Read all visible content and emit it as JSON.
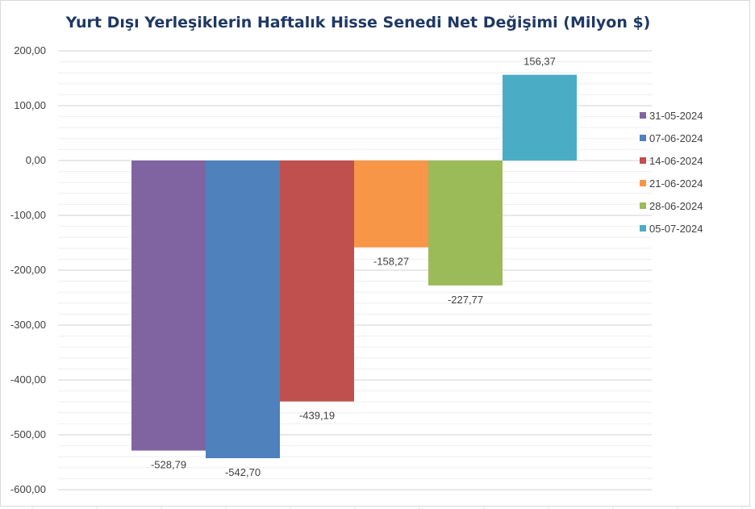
{
  "chart_data": {
    "type": "bar",
    "title": "Yurt Dışı Yerleşiklerin Haftalık Hisse Senedi Net Değişimi (Milyon $)",
    "xlabel": "",
    "ylabel": "",
    "ylim": [
      -600,
      200
    ],
    "y_ticks": [
      "200,00",
      "100,00",
      "0,00",
      "-100,00",
      "-200,00",
      "-300,00",
      "-400,00",
      "-500,00",
      "-600,00"
    ],
    "y_tick_values": [
      200,
      100,
      0,
      -100,
      -200,
      -300,
      -400,
      -500,
      -600
    ],
    "grid": true,
    "legend_position": "right",
    "series": [
      {
        "name": "31-05-2024",
        "value": -528.79,
        "label": "-528,79",
        "color": "#8064a2"
      },
      {
        "name": "07-06-2024",
        "value": -542.7,
        "label": "-542,70",
        "color": "#4f81bd"
      },
      {
        "name": "14-06-2024",
        "value": -439.19,
        "label": "-439,19",
        "color": "#c0504d"
      },
      {
        "name": "21-06-2024",
        "value": -158.27,
        "label": "-158,27",
        "color": "#f79646"
      },
      {
        "name": "28-06-2024",
        "value": -227.77,
        "label": "-227,77",
        "color": "#9bbb59"
      },
      {
        "name": "05-07-2024",
        "value": 156.37,
        "label": "156,37",
        "color": "#4bacc6"
      }
    ]
  }
}
